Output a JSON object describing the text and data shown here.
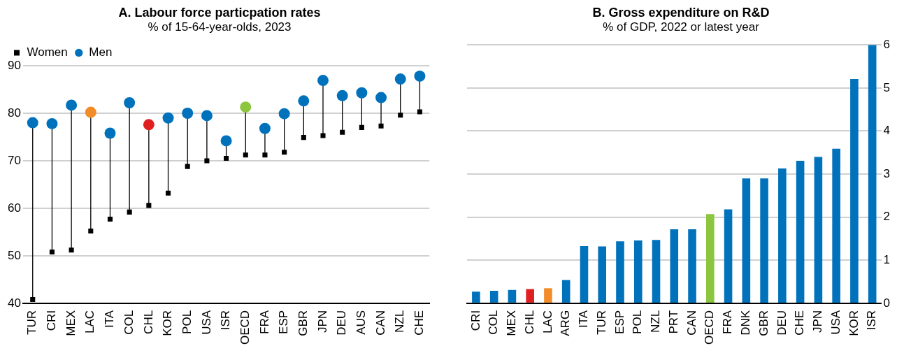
{
  "chart_data": [
    {
      "type": "scatter",
      "title": "A. Labour force particpation rates",
      "subtitle": "% of 15-64-year-olds, 2023",
      "categories": [
        "TUR",
        "CRI",
        "MEX",
        "LAC",
        "ITA",
        "COL",
        "CHL",
        "KOR",
        "POL",
        "USA",
        "ISR",
        "OECD",
        "FRA",
        "ESP",
        "GBR",
        "JPN",
        "DEU",
        "AUS",
        "CAN",
        "NZL",
        "CHE"
      ],
      "series": [
        {
          "name": "Women",
          "color": "#000000",
          "marker": "square",
          "values": [
            40.8,
            50.8,
            51.2,
            55.2,
            57.7,
            59.2,
            60.6,
            63.2,
            68.8,
            70.0,
            70.5,
            71.2,
            71.2,
            71.8,
            74.9,
            75.3,
            76.0,
            77.0,
            77.3,
            79.6,
            80.3
          ]
        },
        {
          "name": "Men",
          "color": "#0072bc",
          "marker": "circle",
          "colors": [
            "#0072bc",
            "#0072bc",
            "#0072bc",
            "#f28c28",
            "#0072bc",
            "#0072bc",
            "#e02020",
            "#0072bc",
            "#0072bc",
            "#0072bc",
            "#0072bc",
            "#8cc63f",
            "#0072bc",
            "#0072bc",
            "#0072bc",
            "#0072bc",
            "#0072bc",
            "#0072bc",
            "#0072bc",
            "#0072bc",
            "#0072bc"
          ],
          "values": [
            78.0,
            77.8,
            81.7,
            80.2,
            75.8,
            82.2,
            77.6,
            79.0,
            80.0,
            79.5,
            74.2,
            81.3,
            76.8,
            79.9,
            82.6,
            86.9,
            83.7,
            84.3,
            83.3,
            87.2,
            87.8
          ]
        }
      ],
      "ylim": [
        40,
        90
      ],
      "yticks": [
        40,
        50,
        60,
        70,
        80,
        90
      ],
      "grid": "y",
      "legend": "top left"
    },
    {
      "type": "bar",
      "title": "B. Gross expenditure on R&D",
      "subtitle": "% of GDP, 2022 or latest year",
      "categories": [
        "CRI",
        "COL",
        "MEX",
        "CHL",
        "LAC",
        "ARG",
        "ITA",
        "TUR",
        "ESP",
        "POL",
        "NZL",
        "PRT",
        "CAN",
        "OECD",
        "FRA",
        "DNK",
        "GBR",
        "DEU",
        "CHE",
        "JPN",
        "USA",
        "KOR",
        "ISR"
      ],
      "series": [
        {
          "axis": "y2",
          "color": "#0072bc",
          "colors": [
            "#0072bc",
            "#0072bc",
            "#0072bc",
            "#e02020",
            "#f28c28",
            "#0072bc",
            "#0072bc",
            "#0072bc",
            "#0072bc",
            "#0072bc",
            "#0072bc",
            "#0072bc",
            "#0072bc",
            "#8cc63f",
            "#0072bc",
            "#0072bc",
            "#0072bc",
            "#0072bc",
            "#0072bc",
            "#0072bc",
            "#0072bc",
            "#0072bc",
            "#0072bc"
          ],
          "values": [
            0.27,
            0.29,
            0.31,
            0.33,
            0.35,
            0.54,
            1.33,
            1.32,
            1.44,
            1.46,
            1.47,
            1.72,
            1.72,
            2.07,
            2.18,
            2.9,
            2.9,
            3.13,
            3.31,
            3.4,
            3.59,
            5.21,
            6.0
          ]
        }
      ],
      "y2lim": [
        0,
        6
      ],
      "y2ticks": [
        0,
        1,
        2,
        3,
        4,
        5,
        6
      ],
      "grid": "y",
      "legend": false
    }
  ]
}
